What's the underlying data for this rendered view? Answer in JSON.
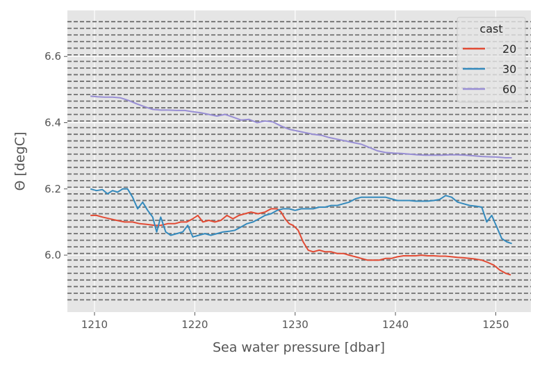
{
  "chart_data": {
    "type": "line",
    "xlabel": "Sea water pressure [dbar]",
    "ylabel": "Θ [degC]",
    "xlim": [
      1207.3,
      1253.5
    ],
    "ylim": [
      5.828,
      6.739
    ],
    "xticks": [
      1210,
      1220,
      1230,
      1240,
      1250
    ],
    "yticks": [
      6.0,
      6.2,
      6.4,
      6.6
    ],
    "ytick_labels": [
      "6.0",
      "6.2",
      "6.4",
      "6.6"
    ],
    "grid": true,
    "legend": {
      "title": "cast",
      "placement": "top-right"
    },
    "dashed_reference_lines": [
      5.965,
      5.985,
      6.005,
      6.025,
      6.045,
      6.065,
      6.085,
      6.105,
      6.125,
      6.145,
      6.165,
      6.185,
      6.205,
      6.225,
      6.245,
      6.265,
      6.285,
      6.305,
      6.325,
      6.345,
      6.365,
      6.385,
      6.405,
      6.425,
      6.445,
      6.465,
      6.485,
      6.505,
      6.525,
      6.545,
      6.565,
      6.585,
      6.605,
      6.625,
      6.645,
      6.665,
      6.685,
      6.705,
      5.945,
      5.925,
      5.905,
      5.885,
      5.865
    ],
    "series": [
      {
        "name": "20",
        "color": "#E24A33",
        "x": [
          1209.6,
          1210.2,
          1210.8,
          1211.5,
          1212.2,
          1213,
          1213.8,
          1214.5,
          1215.2,
          1216,
          1216.6,
          1217.3,
          1218,
          1218.6,
          1219.2,
          1219.8,
          1220.3,
          1220.8,
          1221.4,
          1222,
          1222.6,
          1223.2,
          1223.8,
          1224.4,
          1225,
          1225.6,
          1226.3,
          1227,
          1227.6,
          1228.2,
          1228.6,
          1229,
          1229.4,
          1229.8,
          1230.3,
          1230.8,
          1231.3,
          1231.8,
          1232.4,
          1233,
          1233.6,
          1234.2,
          1234.8,
          1235.4,
          1236,
          1236.6,
          1237.2,
          1237.8,
          1238.4,
          1239,
          1239.6,
          1240.2,
          1240.8,
          1241.4,
          1242,
          1242.6,
          1243.2,
          1243.8,
          1244.4,
          1245,
          1245.6,
          1246.2,
          1246.8,
          1247.4,
          1248,
          1248.6,
          1249.2,
          1249.8,
          1250.4,
          1251,
          1251.5
        ],
        "y": [
          6.12,
          6.12,
          6.115,
          6.11,
          6.105,
          6.1,
          6.1,
          6.095,
          6.093,
          6.09,
          6.09,
          6.095,
          6.095,
          6.1,
          6.1,
          6.11,
          6.12,
          6.1,
          6.105,
          6.1,
          6.105,
          6.12,
          6.11,
          6.12,
          6.125,
          6.13,
          6.125,
          6.13,
          6.14,
          6.14,
          6.13,
          6.11,
          6.095,
          6.09,
          6.075,
          6.04,
          6.015,
          6.01,
          6.015,
          6.01,
          6.01,
          6.005,
          6.005,
          6,
          5.995,
          5.99,
          5.985,
          5.985,
          5.985,
          5.99,
          5.99,
          5.995,
          5.998,
          5.998,
          5.998,
          6,
          5.998,
          5.998,
          5.997,
          5.997,
          5.995,
          5.993,
          5.992,
          5.99,
          5.988,
          5.985,
          5.978,
          5.97,
          5.955,
          5.945,
          5.94
        ]
      },
      {
        "name": "30",
        "color": "#348ABD",
        "x": [
          1209.6,
          1210.2,
          1210.8,
          1211.3,
          1211.8,
          1212.3,
          1212.8,
          1213.3,
          1213.8,
          1214.3,
          1214.8,
          1215.3,
          1215.8,
          1216.2,
          1216.6,
          1217.1,
          1217.6,
          1218.2,
          1218.8,
          1219.3,
          1219.8,
          1220.4,
          1221,
          1221.6,
          1222.2,
          1222.8,
          1223.4,
          1224,
          1224.6,
          1225.2,
          1225.8,
          1226.4,
          1227,
          1227.6,
          1228.2,
          1228.8,
          1229.4,
          1230,
          1230.6,
          1231.2,
          1231.8,
          1232.4,
          1233,
          1233.6,
          1234.2,
          1234.8,
          1235.4,
          1236,
          1236.6,
          1237.2,
          1237.8,
          1238.4,
          1239,
          1239.6,
          1240.2,
          1240.8,
          1241.4,
          1242,
          1242.6,
          1243.2,
          1243.8,
          1244.4,
          1245,
          1245.6,
          1246.2,
          1246.8,
          1247.4,
          1248,
          1248.6,
          1249.1,
          1249.6,
          1250.1,
          1250.6,
          1251.1,
          1251.6
        ],
        "y": [
          6.2,
          6.195,
          6.198,
          6.185,
          6.195,
          6.19,
          6.2,
          6.2,
          6.175,
          6.14,
          6.16,
          6.135,
          6.115,
          6.07,
          6.115,
          6.07,
          6.06,
          6.065,
          6.07,
          6.09,
          6.055,
          6.06,
          6.065,
          6.06,
          6.065,
          6.07,
          6.072,
          6.075,
          6.085,
          6.095,
          6.1,
          6.11,
          6.12,
          6.125,
          6.135,
          6.14,
          6.14,
          6.135,
          6.14,
          6.14,
          6.14,
          6.145,
          6.145,
          6.15,
          6.15,
          6.155,
          6.16,
          6.17,
          6.175,
          6.175,
          6.175,
          6.175,
          6.175,
          6.17,
          6.165,
          6.165,
          6.165,
          6.163,
          6.163,
          6.163,
          6.165,
          6.168,
          6.18,
          6.175,
          6.16,
          6.155,
          6.15,
          6.148,
          6.145,
          6.1,
          6.12,
          6.085,
          6.05,
          6.04,
          6.035
        ]
      },
      {
        "name": "60",
        "color": "#988ED5",
        "x": [
          1209.6,
          1210.3,
          1211,
          1211.8,
          1212.6,
          1213.4,
          1214.2,
          1215,
          1215.8,
          1216.6,
          1217.4,
          1218.2,
          1219,
          1219.8,
          1220.6,
          1221.4,
          1222.2,
          1223,
          1223.8,
          1224.6,
          1225.4,
          1226.2,
          1227,
          1227.8,
          1228.6,
          1229.4,
          1230.2,
          1231,
          1231.8,
          1232.6,
          1233.4,
          1234.2,
          1235,
          1235.8,
          1236.6,
          1237.4,
          1238.2,
          1239,
          1239.8,
          1240.6,
          1241.4,
          1242.2,
          1243,
          1243.8,
          1244.6,
          1245.4,
          1246.2,
          1247,
          1247.8,
          1248.6,
          1249.4,
          1250.2,
          1251,
          1251.6
        ],
        "y": [
          6.48,
          6.478,
          6.477,
          6.477,
          6.475,
          6.467,
          6.457,
          6.448,
          6.44,
          6.438,
          6.438,
          6.437,
          6.437,
          6.433,
          6.43,
          6.425,
          6.42,
          6.425,
          6.417,
          6.408,
          6.41,
          6.4,
          6.405,
          6.402,
          6.39,
          6.38,
          6.375,
          6.37,
          6.365,
          6.362,
          6.355,
          6.35,
          6.345,
          6.34,
          6.335,
          6.325,
          6.315,
          6.31,
          6.308,
          6.307,
          6.305,
          6.303,
          6.302,
          6.302,
          6.302,
          6.303,
          6.303,
          6.302,
          6.3,
          6.298,
          6.297,
          6.296,
          6.294,
          6.294
        ]
      }
    ]
  }
}
